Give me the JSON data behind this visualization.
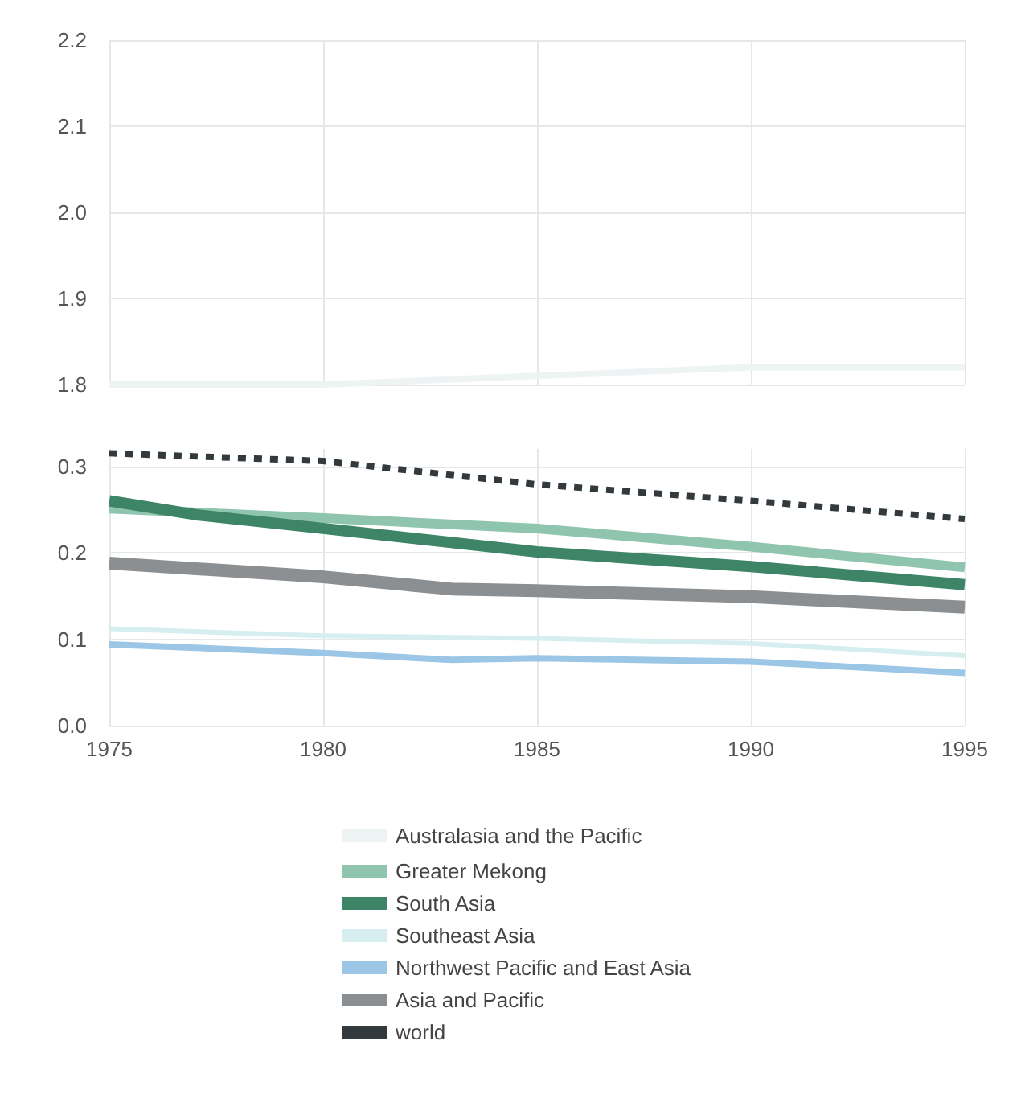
{
  "chart_data": [
    {
      "type": "line",
      "x": [
        1975,
        1980,
        1985,
        1990,
        1995
      ],
      "xlim": [
        1975,
        1995
      ],
      "xticks": [
        1975,
        1980,
        1985,
        1990,
        1995
      ],
      "ylim": [
        1.8,
        2.2
      ],
      "yticks": [
        1.8,
        1.9,
        {
          "value": 2,
          "label": "2.0"
        },
        2.1,
        2.2
      ],
      "grid": true,
      "tick_labels": "y",
      "legend": "bottom",
      "series": [
        {
          "name": "Australasia and the Pacific",
          "color": "#eef4f4",
          "values": [
            1.8,
            1.8,
            1.81,
            1.82,
            1.82
          ]
        }
      ]
    },
    {
      "type": "line",
      "x": [
        1975,
        1980,
        1985,
        1990,
        1995
      ],
      "xlim": [
        1975,
        1995
      ],
      "xticks": [
        1975,
        1980,
        1985,
        1990,
        1995
      ],
      "ylim": [
        0,
        0.32
      ],
      "yticks": [
        {
          "value": 0,
          "label": "0.0"
        },
        0.1,
        0.2,
        0.3
      ],
      "grid": true,
      "legend": "bottom",
      "series": [
        {
          "name": "Greater Mekong",
          "color": "#8fc4ae",
          "values": [
            0.251,
            0.24,
            0.228,
            0.207,
            0.183
          ]
        },
        {
          "name": "South Asia",
          "color": "#3d8566",
          "x": [
            1975,
            1977,
            1980,
            1985,
            1990,
            1995
          ],
          "values": [
            0.26,
            0.244,
            0.228,
            0.201,
            0.184,
            0.163
          ]
        },
        {
          "name": "Southeast Asia",
          "color": "#d6eef0",
          "values": [
            0.112,
            0.104,
            0.101,
            0.095,
            0.081
          ]
        },
        {
          "name": "Northwest Pacific and East Asia",
          "color": "#9cc6e6",
          "x": [
            1975,
            1980,
            1983,
            1985,
            1990,
            1995
          ],
          "values": [
            0.094,
            0.084,
            0.076,
            0.078,
            0.074,
            0.061
          ]
        },
        {
          "name": "Asia and Pacific",
          "color": "#8c8f91",
          "x": [
            1975,
            1980,
            1983,
            1985,
            1990,
            1995
          ],
          "values": [
            0.188,
            0.172,
            0.158,
            0.156,
            0.149,
            0.137
          ]
        },
        {
          "name": "world",
          "color": "#333a3d",
          "line_style": "dashed",
          "values": [
            0.315,
            0.306,
            0.279,
            0.26,
            0.239
          ]
        }
      ]
    }
  ]
}
